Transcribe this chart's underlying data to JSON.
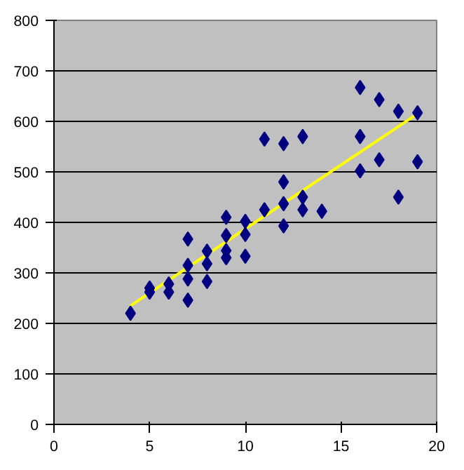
{
  "chart_data": {
    "type": "scatter",
    "grid": "y",
    "xlim": [
      0,
      20
    ],
    "xticks": [
      0,
      5,
      10,
      15,
      20
    ],
    "ylim": [
      0,
      800
    ],
    "yticks": [
      0,
      100,
      200,
      300,
      400,
      500,
      600,
      700,
      800
    ],
    "series": [
      {
        "marker": "diamond",
        "color": "#000080",
        "x": [
          4,
          5,
          5,
          6,
          6,
          7,
          7,
          7,
          7,
          8,
          8,
          8,
          9,
          9,
          9,
          9,
          10,
          10,
          10,
          11,
          11,
          12,
          12,
          12,
          12,
          13,
          13,
          13,
          14,
          16,
          16,
          16,
          17,
          17,
          18,
          18,
          19,
          19
        ],
        "values": [
          220,
          270,
          262,
          278,
          262,
          367,
          315,
          288,
          246,
          343,
          318,
          283,
          410,
          374,
          344,
          330,
          402,
          376,
          333,
          565,
          425,
          556,
          480,
          437,
          393,
          570,
          450,
          425,
          422,
          667,
          570,
          502,
          643,
          524,
          620,
          450,
          617,
          520
        ]
      },
      {
        "type": "line",
        "marker": "none",
        "color": "#ffff00",
        "x": [
          4,
          19
        ],
        "values": [
          235,
          615
        ]
      }
    ]
  }
}
